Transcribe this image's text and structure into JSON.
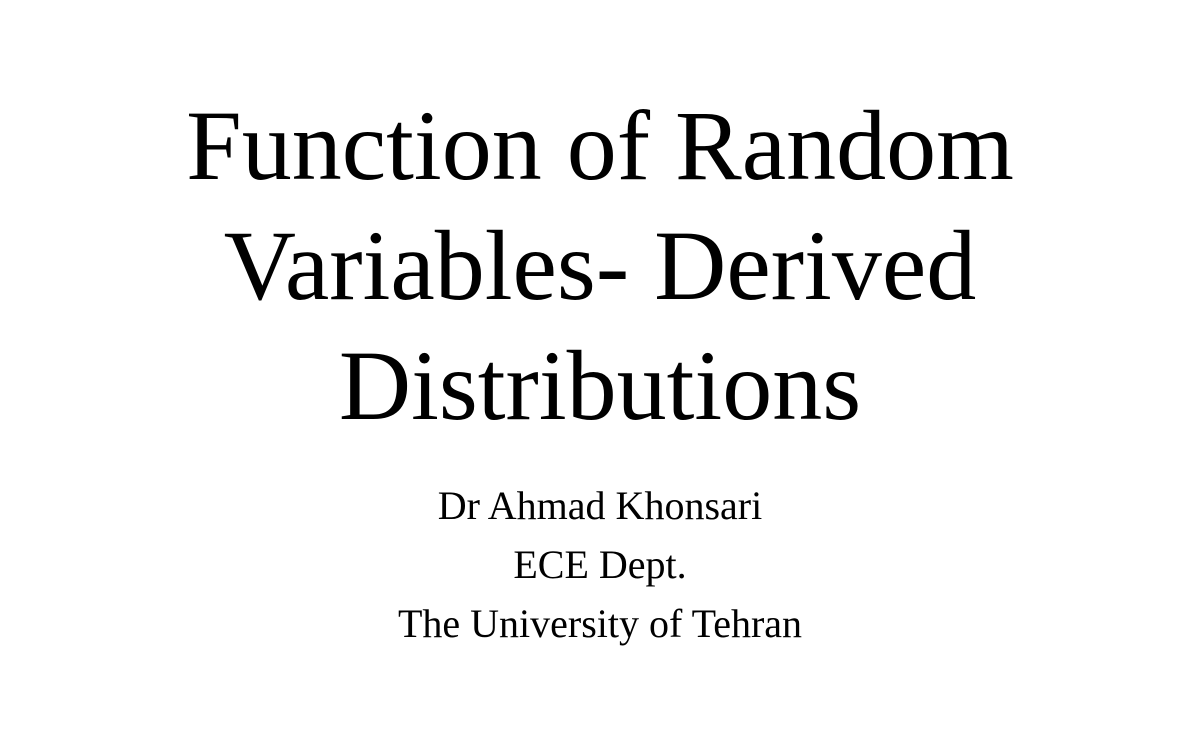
{
  "slide": {
    "title_lines": [
      "Function of Random",
      "Variables- Derived",
      "Distributions"
    ],
    "author": "Dr Ahmad Khonsari",
    "department": "ECE Dept.",
    "institution": "The University of Tehran"
  }
}
